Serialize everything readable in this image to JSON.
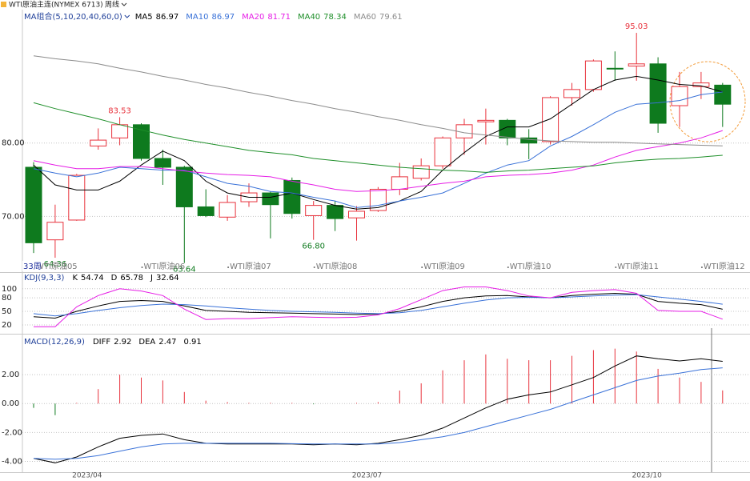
{
  "header": {
    "title": "WTI原油主连(NYMEX 6713)",
    "period": "周线"
  },
  "chart_data": [
    {
      "type": "candlestick",
      "title": "MA组合(5,10,20,40,60,0)",
      "up_color": "#e8323c",
      "down_color": "#0e7a1e",
      "open": [
        76.7,
        66.8,
        69.5,
        79.6,
        80.7,
        82.5,
        77.9,
        76.7,
        71.3,
        69.9,
        72.0,
        73.2,
        74.9,
        70.1,
        71.5,
        69.8,
        70.8,
        73.7,
        75.2,
        76.9,
        80.7,
        82.9,
        83.1,
        80.7,
        80.2,
        86.2,
        87.3,
        90.2,
        90.5,
        90.8,
        85.1,
        87.7,
        87.9
      ],
      "high": [
        77.4,
        71.6,
        75.8,
        82.0,
        83.53,
        82.7,
        79.1,
        76.9,
        73.7,
        72.9,
        74.5,
        73.4,
        75.3,
        72.1,
        72.1,
        71.4,
        74.0,
        77.3,
        77.9,
        80.9,
        83.3,
        84.7,
        83.3,
        81.9,
        86.4,
        88.2,
        91.4,
        92.5,
        95.03,
        91.7,
        89.7,
        89.7,
        88.2
      ],
      "low": [
        65.0,
        64.36,
        69.4,
        79.1,
        79.7,
        77.6,
        74.3,
        63.64,
        69.9,
        69.4,
        71.3,
        67.0,
        69.7,
        66.8,
        68.0,
        66.7,
        70.6,
        72.9,
        74.9,
        76.5,
        78.4,
        79.8,
        79.7,
        77.8,
        79.8,
        85.1,
        87.0,
        88.5,
        88.5,
        81.4,
        82.2,
        86.0,
        82.2
      ],
      "close": [
        66.4,
        69.2,
        75.6,
        80.4,
        82.5,
        77.9,
        76.7,
        71.3,
        70.1,
        71.9,
        73.2,
        71.6,
        70.4,
        71.5,
        69.7,
        70.7,
        73.7,
        75.4,
        76.9,
        80.7,
        82.5,
        83.1,
        80.7,
        80.0,
        86.2,
        87.3,
        91.2,
        90.1,
        90.8,
        82.7,
        87.7,
        88.2,
        85.3
      ],
      "series": [
        {
          "name": "MA5",
          "color": "#000000",
          "values": [
            77.0,
            74.3,
            73.6,
            73.6,
            74.8,
            77.0,
            78.9,
            77.6,
            74.8,
            73.2,
            72.6,
            72.6,
            73.2,
            72.3,
            71.5,
            71.0,
            71.2,
            72.1,
            73.4,
            76.3,
            78.7,
            80.9,
            82.2,
            82.2,
            83.3,
            85.3,
            87.3,
            88.6,
            89.1,
            88.6,
            88.0,
            87.8,
            86.97
          ]
        },
        {
          "name": "MA10",
          "color": "#3a72d8",
          "values": [
            76.5,
            75.9,
            75.4,
            75.9,
            76.7,
            76.5,
            76.3,
            76.3,
            75.4,
            74.5,
            74.1,
            73.4,
            73.2,
            72.6,
            72.1,
            71.2,
            71.5,
            72.1,
            72.6,
            73.2,
            74.5,
            75.9,
            77.0,
            77.6,
            79.6,
            80.9,
            82.5,
            84.2,
            85.3,
            85.5,
            85.8,
            86.6,
            86.97
          ]
        },
        {
          "name": "MA20",
          "color": "#e61ee6",
          "values": [
            77.6,
            77.0,
            76.5,
            76.5,
            76.8,
            76.8,
            76.5,
            76.2,
            75.9,
            75.7,
            75.6,
            75.4,
            74.8,
            74.3,
            73.7,
            73.4,
            73.5,
            73.7,
            74.1,
            74.5,
            74.8,
            75.4,
            75.6,
            75.7,
            75.9,
            76.3,
            77.0,
            78.1,
            79.0,
            79.5,
            80.0,
            80.7,
            81.71
          ]
        },
        {
          "name": "MA40",
          "color": "#1f8f2a",
          "values": [
            85.5,
            84.7,
            84.0,
            83.3,
            82.5,
            81.8,
            81.1,
            80.5,
            80.0,
            79.5,
            79.0,
            78.7,
            78.4,
            77.9,
            77.6,
            77.3,
            77.0,
            76.7,
            76.5,
            76.3,
            76.2,
            76.0,
            76.2,
            76.3,
            76.5,
            76.7,
            76.9,
            77.3,
            77.6,
            77.8,
            77.9,
            78.1,
            78.34
          ]
        },
        {
          "name": "MA60",
          "color": "#8c8c8c",
          "values": [
            91.9,
            91.5,
            91.2,
            90.8,
            90.2,
            89.7,
            89.1,
            88.6,
            88.0,
            87.5,
            86.9,
            86.4,
            85.8,
            85.3,
            84.7,
            84.2,
            83.6,
            83.1,
            82.5,
            82.0,
            81.4,
            81.1,
            80.8,
            80.5,
            80.3,
            80.2,
            80.1,
            80.1,
            80.0,
            79.9,
            79.8,
            79.7,
            79.61
          ]
        }
      ],
      "ylim": [
        62.4,
        98.2
      ],
      "yticks": [
        {
          "value": 70,
          "label": "70.00"
        },
        {
          "value": 80,
          "label": "80.00"
        }
      ],
      "grid": true,
      "annotations": [
        95.03,
        83.53,
        {
          "value": 66.8,
          "label": "66.80"
        },
        63.64,
        64.36
      ],
      "contract_labels": [
        "WTI原油05",
        null,
        null,
        null,
        null,
        "WTI原油06",
        null,
        null,
        null,
        "WTI原油07",
        null,
        null,
        null,
        "WTI原油08",
        null,
        null,
        null,
        null,
        "WTI原油09",
        null,
        null,
        null,
        "WTI原油10",
        null,
        null,
        null,
        null,
        "WTI原油11",
        null,
        null,
        null,
        "WTI原油12",
        null
      ],
      "period_label": "33周"
    },
    {
      "type": "line",
      "title": "KDJ(9,3,3)",
      "series": [
        {
          "name": "K",
          "color": "#000000",
          "values": [
            38,
            35,
            50,
            62,
            72,
            74,
            72,
            62,
            52,
            50,
            48,
            47,
            46,
            45,
            44,
            43,
            44,
            50,
            60,
            72,
            80,
            84,
            85,
            82,
            80,
            85,
            88,
            90,
            88,
            72,
            68,
            65,
            54.74
          ]
        },
        {
          "name": "D",
          "color": "#3a72d8",
          "values": [
            45,
            40,
            45,
            52,
            58,
            63,
            66,
            65,
            62,
            58,
            55,
            52,
            50,
            49,
            48,
            46,
            45,
            47,
            52,
            60,
            68,
            75,
            80,
            81,
            80,
            82,
            84,
            86,
            87,
            82,
            77,
            72,
            65.78
          ]
        },
        {
          "name": "J",
          "color": "#e61ee6",
          "values": [
            16,
            16,
            60,
            85,
            100,
            95,
            85,
            55,
            32,
            34,
            34,
            36,
            38,
            37,
            36,
            37,
            42,
            56,
            76,
            96,
            104,
            104,
            96,
            84,
            80,
            92,
            96,
            98,
            90,
            52,
            50,
            50,
            32.64
          ]
        }
      ],
      "ylim": [
        4,
        128
      ],
      "yticks": [
        20,
        50,
        80,
        100
      ],
      "grid": true
    },
    {
      "type": "macd",
      "title": "MACD(12,26,9)",
      "series": [
        {
          "name": "DIFF",
          "color": "#000000",
          "values": [
            -3.8,
            -4.1,
            -3.7,
            -3.0,
            -2.4,
            -2.2,
            -2.1,
            -2.5,
            -2.75,
            -2.8,
            -2.8,
            -2.8,
            -2.8,
            -2.85,
            -2.8,
            -2.85,
            -2.75,
            -2.5,
            -2.2,
            -1.7,
            -1.0,
            -0.3,
            0.3,
            0.6,
            0.8,
            1.3,
            1.8,
            2.6,
            3.3,
            3.1,
            2.95,
            3.1,
            2.92
          ]
        },
        {
          "name": "DEA",
          "color": "#3a72d8",
          "values": [
            -3.8,
            -3.85,
            -3.8,
            -3.6,
            -3.3,
            -3.0,
            -2.8,
            -2.75,
            -2.75,
            -2.75,
            -2.75,
            -2.75,
            -2.78,
            -2.8,
            -2.8,
            -2.8,
            -2.8,
            -2.7,
            -2.5,
            -2.3,
            -2.0,
            -1.6,
            -1.2,
            -0.8,
            -0.4,
            0.1,
            0.6,
            1.1,
            1.6,
            1.9,
            2.1,
            2.35,
            2.47
          ]
        }
      ],
      "bars": {
        "up_color": "#e8323c",
        "down_color": "#0e7a1e",
        "values": [
          -0.3,
          -0.8,
          0.05,
          1.0,
          2.0,
          1.8,
          1.6,
          0.8,
          0.2,
          0.1,
          0.05,
          0.05,
          0.05,
          -0.05,
          0.0,
          0.05,
          0.1,
          0.9,
          1.4,
          2.3,
          3.0,
          3.4,
          3.1,
          3.0,
          3.0,
          3.3,
          3.7,
          3.8,
          3.6,
          2.4,
          1.8,
          1.5,
          0.91
        ]
      },
      "categories": [
        null,
        null,
        "2023/04",
        null,
        null,
        null,
        null,
        null,
        null,
        null,
        null,
        null,
        null,
        null,
        null,
        "2023/07",
        null,
        null,
        null,
        null,
        null,
        null,
        null,
        null,
        null,
        null,
        null,
        null,
        "2023/10",
        null,
        null,
        null,
        null
      ],
      "ylim": [
        -4.75,
        4.5
      ],
      "yticks": [
        {
          "value": 2,
          "label": "2.00"
        },
        {
          "value": 0,
          "label": "0.00"
        },
        {
          "value": -2,
          "label": "-2.00"
        },
        {
          "value": -4,
          "label": "-4.00"
        }
      ],
      "grid": true
    }
  ]
}
